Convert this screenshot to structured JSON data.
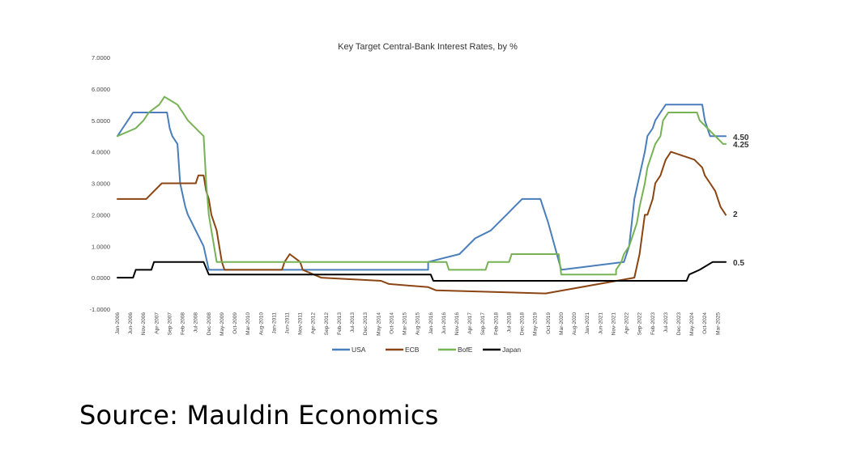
{
  "source": "Source: Mauldin Economics",
  "chart_data": {
    "type": "line",
    "title": "Key Target Central-Bank Interest Rates, by %",
    "xlabel": "",
    "ylabel": "",
    "ylim": [
      -1.0,
      7.0
    ],
    "y_ticks": [
      "7.0000",
      "6.0000",
      "5.0000",
      "4.0000",
      "3.0000",
      "2.0000",
      "1.0000",
      "0.0000",
      "-1.0000"
    ],
    "y_tick_values": [
      7,
      6,
      5,
      4,
      3,
      2,
      1,
      0,
      -1
    ],
    "x_start": "2006-01",
    "x_end": "2025-06",
    "x_ticks": [
      {
        "label": "Jan-2006",
        "date": "2006-01"
      },
      {
        "label": "Jun-2006",
        "date": "2006-06"
      },
      {
        "label": "Nov-2006",
        "date": "2006-11"
      },
      {
        "label": "Apr-2007",
        "date": "2007-04"
      },
      {
        "label": "Sep-2007",
        "date": "2007-09"
      },
      {
        "label": "Feb-2008",
        "date": "2008-02"
      },
      {
        "label": "Jul-2008",
        "date": "2008-07"
      },
      {
        "label": "Dec-2008",
        "date": "2008-12"
      },
      {
        "label": "May-2009",
        "date": "2009-05"
      },
      {
        "label": "Oct-2009",
        "date": "2009-10"
      },
      {
        "label": "Mar-2010",
        "date": "2010-03"
      },
      {
        "label": "Aug-2010",
        "date": "2010-08"
      },
      {
        "label": "Jan-2011",
        "date": "2011-01"
      },
      {
        "label": "Jun-2011",
        "date": "2011-06"
      },
      {
        "label": "Nov-2011",
        "date": "2011-11"
      },
      {
        "label": "Apr-2012",
        "date": "2012-04"
      },
      {
        "label": "Sep-2012",
        "date": "2012-09"
      },
      {
        "label": "Feb-2013",
        "date": "2013-02"
      },
      {
        "label": "Jul-2013",
        "date": "2013-07"
      },
      {
        "label": "Dec-2013",
        "date": "2013-12"
      },
      {
        "label": "May-2014",
        "date": "2014-05"
      },
      {
        "label": "Oct-2014",
        "date": "2014-10"
      },
      {
        "label": "Mar-2015",
        "date": "2015-03"
      },
      {
        "label": "Aug-2015",
        "date": "2015-08"
      },
      {
        "label": "Jan-2016",
        "date": "2016-01"
      },
      {
        "label": "Jun-2016",
        "date": "2016-06"
      },
      {
        "label": "Nov-2016",
        "date": "2016-11"
      },
      {
        "label": "Apr-2017",
        "date": "2017-04"
      },
      {
        "label": "Sep-2017",
        "date": "2017-09"
      },
      {
        "label": "Feb-2018",
        "date": "2018-02"
      },
      {
        "label": "Jul-2018",
        "date": "2018-07"
      },
      {
        "label": "Dec-2018",
        "date": "2018-12"
      },
      {
        "label": "May-2019",
        "date": "2019-05"
      },
      {
        "label": "Oct-2019",
        "date": "2019-10"
      },
      {
        "label": "Mar-2020",
        "date": "2020-03"
      },
      {
        "label": "Aug-2020",
        "date": "2020-08"
      },
      {
        "label": "Jan-2021",
        "date": "2021-01"
      },
      {
        "label": "Jun-2021",
        "date": "2021-06"
      },
      {
        "label": "Nov-2021",
        "date": "2021-11"
      },
      {
        "label": "Apr-2022",
        "date": "2022-04"
      },
      {
        "label": "Sep-2022",
        "date": "2022-09"
      },
      {
        "label": "Feb-2023",
        "date": "2023-02"
      },
      {
        "label": "Jul-2023",
        "date": "2023-07"
      },
      {
        "label": "Dec-2023",
        "date": "2023-12"
      },
      {
        "label": "May-2024",
        "date": "2024-05"
      },
      {
        "label": "Oct-2024",
        "date": "2024-10"
      },
      {
        "label": "Mar-2025",
        "date": "2025-03"
      }
    ],
    "grid": false,
    "legend": "bottom",
    "series": [
      {
        "name": "USA",
        "color": "#4a7ebb",
        "end_label": "4.50",
        "points": [
          [
            "2006-01",
            4.5
          ],
          [
            "2006-03",
            4.75
          ],
          [
            "2006-05",
            5.0
          ],
          [
            "2006-07",
            5.25
          ],
          [
            "2007-08",
            5.25
          ],
          [
            "2007-09",
            4.75
          ],
          [
            "2007-10",
            4.5
          ],
          [
            "2007-12",
            4.25
          ],
          [
            "2008-01",
            3.0
          ],
          [
            "2008-03",
            2.25
          ],
          [
            "2008-04",
            2.0
          ],
          [
            "2008-10",
            1.0
          ],
          [
            "2008-12",
            0.25
          ],
          [
            "2015-12",
            0.25
          ],
          [
            "2015-12",
            0.5
          ],
          [
            "2016-12",
            0.75
          ],
          [
            "2017-03",
            1.0
          ],
          [
            "2017-06",
            1.25
          ],
          [
            "2017-12",
            1.5
          ],
          [
            "2018-03",
            1.75
          ],
          [
            "2018-06",
            2.0
          ],
          [
            "2018-09",
            2.25
          ],
          [
            "2018-12",
            2.5
          ],
          [
            "2019-07",
            2.5
          ],
          [
            "2019-08",
            2.25
          ],
          [
            "2019-09",
            2.0
          ],
          [
            "2019-10",
            1.75
          ],
          [
            "2020-03",
            0.25
          ],
          [
            "2022-03",
            0.5
          ],
          [
            "2022-05",
            1.0
          ],
          [
            "2022-06",
            1.75
          ],
          [
            "2022-07",
            2.5
          ],
          [
            "2022-09",
            3.25
          ],
          [
            "2022-11",
            4.0
          ],
          [
            "2022-12",
            4.5
          ],
          [
            "2023-02",
            4.75
          ],
          [
            "2023-03",
            5.0
          ],
          [
            "2023-05",
            5.25
          ],
          [
            "2023-07",
            5.5
          ],
          [
            "2024-09",
            5.5
          ],
          [
            "2024-10",
            5.0
          ],
          [
            "2024-11",
            4.75
          ],
          [
            "2024-12",
            4.5
          ],
          [
            "2025-06",
            4.5
          ]
        ]
      },
      {
        "name": "ECB",
        "color": "#8b4513",
        "end_label": "2",
        "points": [
          [
            "2006-01",
            2.5
          ],
          [
            "2006-03",
            2.5
          ],
          [
            "2006-12",
            2.5
          ],
          [
            "2007-03",
            2.75
          ],
          [
            "2007-06",
            3.0
          ],
          [
            "2008-07",
            3.0
          ],
          [
            "2008-08",
            3.25
          ],
          [
            "2008-10",
            3.25
          ],
          [
            "2008-11",
            2.75
          ],
          [
            "2008-12",
            2.5
          ],
          [
            "2009-01",
            2.0
          ],
          [
            "2009-03",
            1.5
          ],
          [
            "2009-04",
            1.0
          ],
          [
            "2009-05",
            0.5
          ],
          [
            "2009-06",
            0.25
          ],
          [
            "2011-04",
            0.25
          ],
          [
            "2011-05",
            0.5
          ],
          [
            "2011-07",
            0.75
          ],
          [
            "2011-11",
            0.5
          ],
          [
            "2011-12",
            0.25
          ],
          [
            "2012-07",
            0.0
          ],
          [
            "2014-06",
            -0.1
          ],
          [
            "2014-09",
            -0.2
          ],
          [
            "2015-12",
            -0.3
          ],
          [
            "2016-03",
            -0.4
          ],
          [
            "2019-09",
            -0.5
          ],
          [
            "2022-07",
            0.0
          ],
          [
            "2022-09",
            0.75
          ],
          [
            "2022-11",
            2.0
          ],
          [
            "2022-12",
            2.0
          ],
          [
            "2023-02",
            2.5
          ],
          [
            "2023-03",
            3.0
          ],
          [
            "2023-05",
            3.25
          ],
          [
            "2023-06",
            3.5
          ],
          [
            "2023-07",
            3.75
          ],
          [
            "2023-09",
            4.0
          ],
          [
            "2024-06",
            3.75
          ],
          [
            "2024-09",
            3.5
          ],
          [
            "2024-10",
            3.25
          ],
          [
            "2024-12",
            3.0
          ],
          [
            "2025-02",
            2.75
          ],
          [
            "2025-03",
            2.5
          ],
          [
            "2025-04",
            2.25
          ],
          [
            "2025-06",
            2.0
          ]
        ]
      },
      {
        "name": "BofE",
        "color": "#77b255",
        "end_label": "4.25",
        "points": [
          [
            "2006-01",
            4.5
          ],
          [
            "2006-08",
            4.75
          ],
          [
            "2006-11",
            5.0
          ],
          [
            "2007-01",
            5.25
          ],
          [
            "2007-05",
            5.5
          ],
          [
            "2007-07",
            5.75
          ],
          [
            "2007-12",
            5.5
          ],
          [
            "2008-02",
            5.25
          ],
          [
            "2008-04",
            5.0
          ],
          [
            "2008-10",
            4.5
          ],
          [
            "2008-11",
            3.0
          ],
          [
            "2008-12",
            2.0
          ],
          [
            "2009-01",
            1.5
          ],
          [
            "2009-02",
            1.0
          ],
          [
            "2009-03",
            0.5
          ],
          [
            "2016-07",
            0.5
          ],
          [
            "2016-08",
            0.25
          ],
          [
            "2017-10",
            0.25
          ],
          [
            "2017-11",
            0.5
          ],
          [
            "2018-07",
            0.5
          ],
          [
            "2018-08",
            0.75
          ],
          [
            "2020-02",
            0.75
          ],
          [
            "2020-03",
            0.1
          ],
          [
            "2021-12",
            0.1
          ],
          [
            "2021-12",
            0.25
          ],
          [
            "2022-02",
            0.5
          ],
          [
            "2022-03",
            0.75
          ],
          [
            "2022-05",
            1.0
          ],
          [
            "2022-06",
            1.25
          ],
          [
            "2022-08",
            1.75
          ],
          [
            "2022-09",
            2.25
          ],
          [
            "2022-11",
            3.0
          ],
          [
            "2022-12",
            3.5
          ],
          [
            "2023-02",
            4.0
          ],
          [
            "2023-03",
            4.25
          ],
          [
            "2023-05",
            4.5
          ],
          [
            "2023-06",
            5.0
          ],
          [
            "2023-08",
            5.25
          ],
          [
            "2024-07",
            5.25
          ],
          [
            "2024-08",
            5.0
          ],
          [
            "2024-11",
            4.75
          ],
          [
            "2025-02",
            4.5
          ],
          [
            "2025-05",
            4.25
          ],
          [
            "2025-06",
            4.25
          ]
        ]
      },
      {
        "name": "Japan",
        "color": "#000000",
        "end_label": "0.5",
        "points": [
          [
            "2006-01",
            0.0
          ],
          [
            "2006-07",
            0.0
          ],
          [
            "2006-08",
            0.25
          ],
          [
            "2007-02",
            0.25
          ],
          [
            "2007-03",
            0.5
          ],
          [
            "2008-10",
            0.5
          ],
          [
            "2008-11",
            0.3
          ],
          [
            "2008-12",
            0.1
          ],
          [
            "2016-01",
            0.1
          ],
          [
            "2016-02",
            -0.1
          ],
          [
            "2024-03",
            -0.1
          ],
          [
            "2024-04",
            0.1
          ],
          [
            "2024-08",
            0.25
          ],
          [
            "2025-01",
            0.5
          ],
          [
            "2025-06",
            0.5
          ]
        ]
      }
    ]
  }
}
